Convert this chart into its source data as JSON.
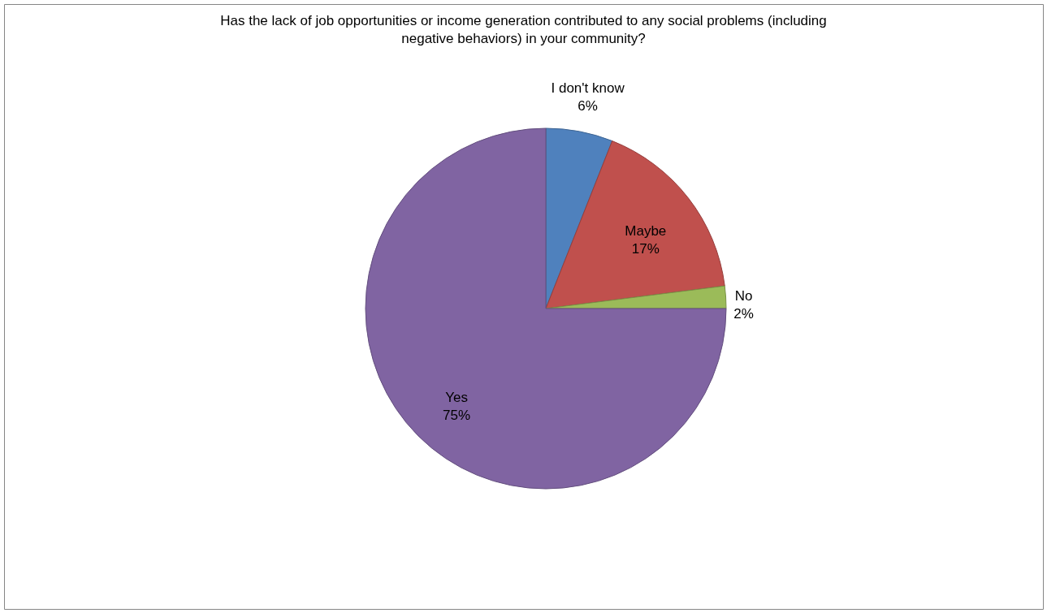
{
  "chart_data": {
    "type": "pie",
    "title": "Has the lack of job opportunities or income generation contributed to any social problems (including negative behaviors) in your community?",
    "categories": [
      "I don't know",
      "Maybe",
      "No",
      "Yes"
    ],
    "values": [
      6,
      17,
      2,
      75
    ],
    "colors": [
      "#4f81bd",
      "#c0504d",
      "#9bbb59",
      "#8064a2"
    ],
    "value_labels": [
      "6%",
      "17%",
      "2%",
      "75%"
    ]
  }
}
